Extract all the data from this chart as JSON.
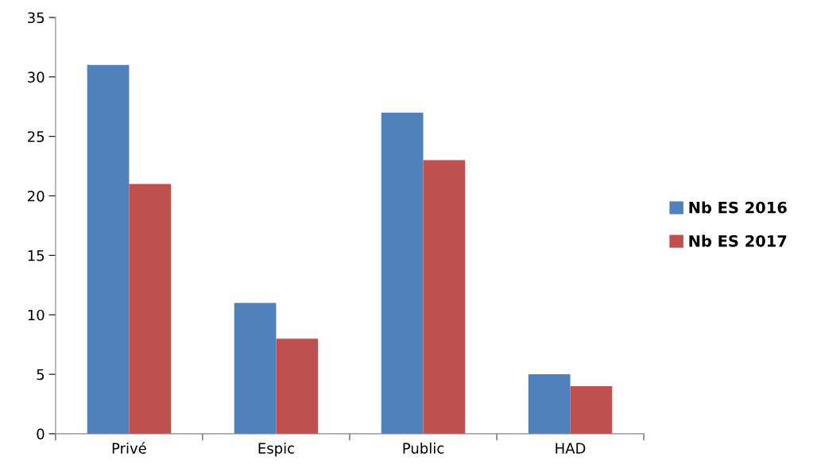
{
  "chart_data": {
    "type": "bar",
    "categories": [
      "Privé",
      "Espic",
      "Public",
      "HAD"
    ],
    "series": [
      {
        "name": "Nb ES 2016",
        "color": "#4f81bd",
        "values": [
          31,
          11,
          27,
          5
        ]
      },
      {
        "name": "Nb ES 2017",
        "color": "#c0504d",
        "values": [
          21,
          8,
          23,
          4
        ]
      }
    ],
    "ylim": [
      0,
      35
    ],
    "yticks": [
      0,
      5,
      10,
      15,
      20,
      25,
      30,
      35
    ],
    "grid": false,
    "legend": "right"
  }
}
